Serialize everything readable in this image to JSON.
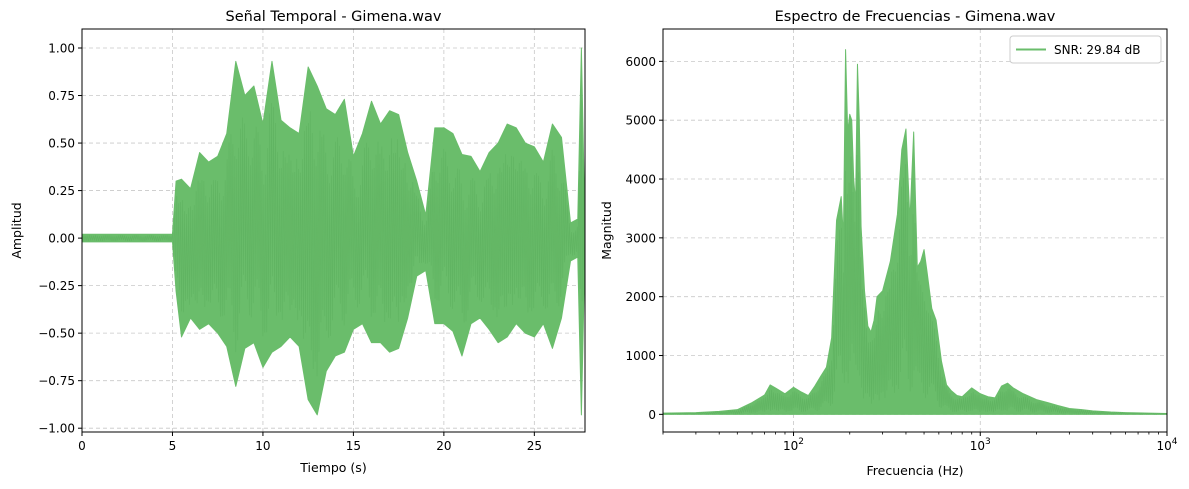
{
  "chart_data": [
    {
      "type": "line",
      "title": "Señal Temporal - Gimena.wav",
      "xlabel": "Tiempo (s)",
      "ylabel": "Amplitud",
      "xlim": [
        0,
        27.8
      ],
      "ylim": [
        -1.02,
        1.1
      ],
      "xscale": "linear",
      "grid": true,
      "xticks": [
        0,
        5,
        10,
        15,
        20,
        25
      ],
      "xtick_labels": [
        "0",
        "5",
        "10",
        "15",
        "20",
        "25"
      ],
      "yticks": [
        -1.0,
        -0.75,
        -0.5,
        -0.25,
        0.0,
        0.25,
        0.5,
        0.75,
        1.0
      ],
      "ytick_labels": [
        "−1.00",
        "−0.75",
        "−0.50",
        "−0.25",
        "0.00",
        "0.25",
        "0.50",
        "0.75",
        "1.00"
      ],
      "color": "#6abd6b",
      "series": [
        {
          "x": [
            0,
            1,
            2,
            3,
            4,
            5,
            5.2,
            5.5,
            6,
            6.5,
            7,
            7.5,
            8,
            8.5,
            9,
            9.5,
            10,
            10.5,
            11,
            11.5,
            12,
            12.5,
            13,
            13.5,
            14,
            14.5,
            15,
            15.5,
            16,
            16.5,
            17,
            17.5,
            18,
            18.5,
            19,
            19.5,
            20,
            20.5,
            21,
            21.5,
            22,
            22.5,
            23,
            23.5,
            24,
            24.5,
            25,
            25.5,
            26,
            26.5,
            27,
            27.4,
            27.6,
            27.8
          ],
          "upper": [
            0.02,
            0.02,
            0.02,
            0.02,
            0.02,
            0.02,
            0.3,
            0.31,
            0.26,
            0.45,
            0.4,
            0.43,
            0.55,
            0.93,
            0.75,
            0.8,
            0.6,
            0.93,
            0.62,
            0.58,
            0.55,
            0.9,
            0.8,
            0.68,
            0.65,
            0.73,
            0.43,
            0.55,
            0.72,
            0.6,
            0.67,
            0.65,
            0.45,
            0.3,
            0.12,
            0.58,
            0.58,
            0.55,
            0.44,
            0.43,
            0.35,
            0.45,
            0.5,
            0.6,
            0.58,
            0.5,
            0.48,
            0.4,
            0.6,
            0.53,
            0.08,
            0.1,
            1.0,
            0.05
          ],
          "lower": [
            -0.02,
            -0.02,
            -0.02,
            -0.02,
            -0.02,
            -0.02,
            -0.28,
            -0.52,
            -0.42,
            -0.48,
            -0.45,
            -0.5,
            -0.57,
            -0.78,
            -0.58,
            -0.55,
            -0.68,
            -0.6,
            -0.57,
            -0.52,
            -0.57,
            -0.85,
            -0.93,
            -0.7,
            -0.62,
            -0.6,
            -0.48,
            -0.45,
            -0.55,
            -0.55,
            -0.6,
            -0.58,
            -0.42,
            -0.2,
            -0.17,
            -0.45,
            -0.45,
            -0.49,
            -0.62,
            -0.45,
            -0.42,
            -0.48,
            -0.55,
            -0.52,
            -0.45,
            -0.5,
            -0.52,
            -0.45,
            -0.58,
            -0.42,
            -0.12,
            -0.1,
            -0.93,
            -0.05
          ]
        }
      ]
    },
    {
      "type": "line",
      "title": "Espectro de Frecuencias - Gimena.wav",
      "xlabel": "Frecuencia (Hz)",
      "ylabel": "Magnitud",
      "xlim": [
        20,
        10000
      ],
      "ylim": [
        -300,
        6550
      ],
      "xscale": "log",
      "grid": true,
      "xticks": [
        100,
        1000,
        10000
      ],
      "xtick_labels": [
        "10",
        "10",
        "10"
      ],
      "xtick_exponents": [
        "2",
        "3",
        "4"
      ],
      "yticks": [
        0,
        1000,
        2000,
        3000,
        4000,
        5000,
        6000
      ],
      "ytick_labels": [
        "0",
        "1000",
        "2000",
        "3000",
        "4000",
        "5000",
        "6000"
      ],
      "legend": {
        "position": "top-right",
        "entries": [
          "SNR: 29.84 dB"
        ]
      },
      "color": "#6abd6b",
      "series": [
        {
          "name": "SNR: 29.84 dB",
          "x": [
            20,
            30,
            40,
            50,
            60,
            70,
            75,
            80,
            90,
            100,
            110,
            120,
            130,
            140,
            150,
            160,
            170,
            180,
            185,
            190,
            195,
            200,
            205,
            210,
            215,
            220,
            225,
            230,
            240,
            250,
            260,
            270,
            280,
            300,
            330,
            360,
            380,
            400,
            420,
            440,
            460,
            480,
            500,
            520,
            550,
            580,
            620,
            660,
            700,
            750,
            800,
            900,
            1000,
            1100,
            1200,
            1300,
            1400,
            1500,
            1700,
            2000,
            2300,
            2600,
            3000,
            3500,
            4000,
            5000,
            6000,
            7000,
            8000,
            10000
          ],
          "upper": [
            20,
            30,
            50,
            80,
            200,
            330,
            500,
            450,
            350,
            460,
            380,
            320,
            480,
            650,
            800,
            1300,
            3300,
            3700,
            3000,
            6200,
            4800,
            5100,
            5000,
            4000,
            3600,
            5950,
            5000,
            3200,
            2100,
            1500,
            1400,
            1600,
            2000,
            2100,
            2600,
            3400,
            4500,
            4850,
            3300,
            4800,
            2500,
            2600,
            2800,
            2400,
            1800,
            1600,
            900,
            500,
            400,
            320,
            300,
            450,
            350,
            300,
            280,
            480,
            530,
            450,
            350,
            250,
            200,
            150,
            100,
            80,
            60,
            40,
            30,
            25,
            20,
            15
          ],
          "lower": [
            0,
            0,
            0,
            0,
            0,
            0,
            0,
            0,
            0,
            0,
            0,
            0,
            0,
            0,
            0,
            0,
            0,
            0,
            0,
            0,
            0,
            0,
            0,
            0,
            0,
            0,
            0,
            0,
            0,
            0,
            0,
            0,
            0,
            0,
            0,
            0,
            0,
            0,
            0,
            0,
            0,
            0,
            0,
            0,
            0,
            0,
            0,
            0,
            0,
            0,
            0,
            0,
            0,
            0,
            0,
            0,
            0,
            0,
            0,
            0,
            0,
            0,
            0,
            0,
            0,
            0,
            0,
            0,
            0,
            0
          ]
        }
      ]
    }
  ]
}
